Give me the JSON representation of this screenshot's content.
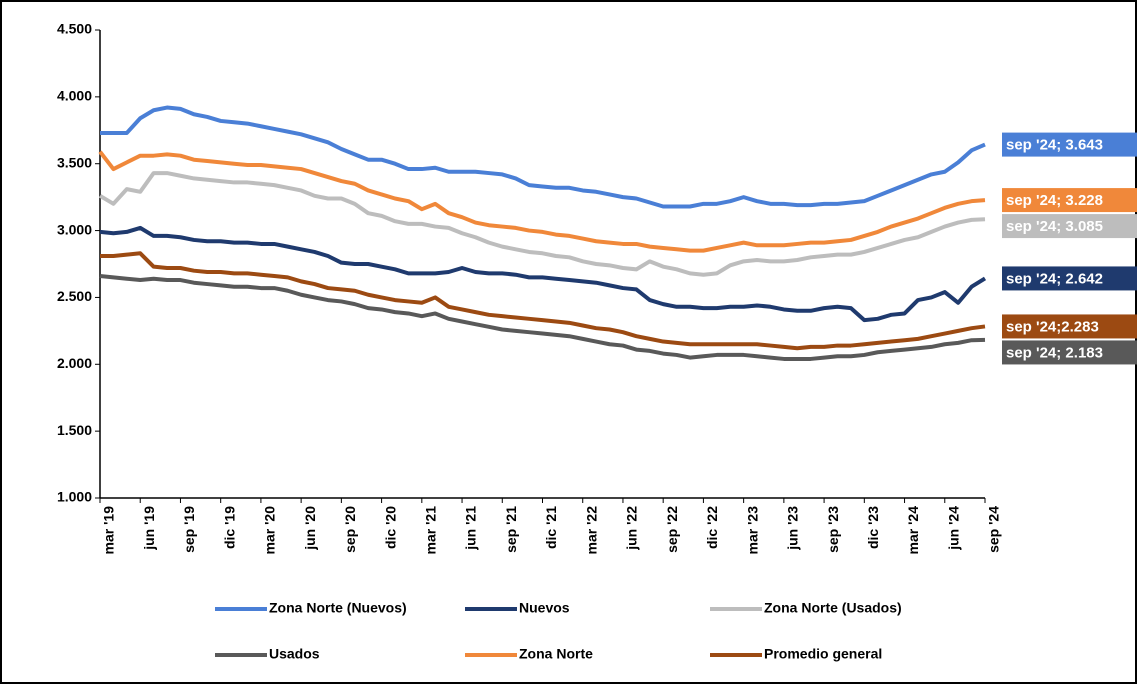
{
  "chart_data": {
    "type": "line",
    "categories": [
      "mar '19",
      null,
      null,
      "jun '19",
      null,
      null,
      "sep '19",
      null,
      null,
      "dic '19",
      null,
      null,
      "mar '20",
      null,
      null,
      "jun '20",
      null,
      null,
      "sep '20",
      null,
      null,
      "dic '20",
      null,
      null,
      "mar '21",
      null,
      null,
      "jun '21",
      null,
      null,
      "sep '21",
      null,
      null,
      "dic '21",
      null,
      null,
      "mar '22",
      null,
      null,
      "jun '22",
      null,
      null,
      "sep '22",
      null,
      null,
      "dic '22",
      null,
      null,
      "mar '23",
      null,
      null,
      "jun '23",
      null,
      null,
      "sep '23",
      null,
      null,
      "dic '23",
      null,
      null,
      "mar '24",
      null,
      null,
      "jun '24",
      null,
      null,
      "sep '24"
    ],
    "ylim": [
      1000,
      4500
    ],
    "yticks": [
      {
        "value": 1000,
        "label": "1.000"
      },
      {
        "value": 1500,
        "label": "1.500"
      },
      {
        "value": 2000,
        "label": "2.000"
      },
      {
        "value": 2500,
        "label": "2.500"
      },
      {
        "value": 3000,
        "label": "3.000"
      },
      {
        "value": 3500,
        "label": "3.500"
      },
      {
        "value": 4000,
        "label": "4.000"
      },
      {
        "value": 4500,
        "label": "4.500"
      }
    ],
    "grid": false,
    "legend": "bottom",
    "series": [
      {
        "name": "Zona Norte (Nuevos)",
        "color": "#4a7fd6",
        "values": [
          3730,
          3730,
          3730,
          3840,
          3900,
          3920,
          3910,
          3870,
          3850,
          3820,
          3810,
          3800,
          3780,
          3760,
          3740,
          3720,
          3690,
          3660,
          3610,
          3570,
          3530,
          3530,
          3500,
          3460,
          3460,
          3470,
          3440,
          3440,
          3440,
          3430,
          3420,
          3390,
          3340,
          3330,
          3320,
          3320,
          3300,
          3290,
          3270,
          3250,
          3240,
          3210,
          3180,
          3180,
          3180,
          3200,
          3200,
          3220,
          3250,
          3220,
          3200,
          3200,
          3190,
          3190,
          3200,
          3200,
          3210,
          3220,
          3260,
          3300,
          3340,
          3380,
          3420,
          3440,
          3510,
          3600,
          3643
        ],
        "value_labels": [
          null,
          null,
          null,
          null,
          null,
          null,
          null,
          null,
          null,
          null,
          null,
          null,
          null,
          null,
          null,
          null,
          null,
          null,
          null,
          null,
          null,
          null,
          null,
          null,
          null,
          null,
          null,
          null,
          null,
          null,
          null,
          null,
          null,
          null,
          null,
          null,
          null,
          null,
          null,
          null,
          null,
          null,
          null,
          null,
          null,
          null,
          null,
          null,
          null,
          null,
          null,
          null,
          null,
          null,
          null,
          null,
          null,
          null,
          null,
          null,
          null,
          null,
          null,
          null,
          null,
          null,
          "sep '24; 3.643"
        ]
      },
      {
        "name": "Nuevos",
        "color": "#1f3a6e",
        "values": [
          2990,
          2980,
          2990,
          3020,
          2960,
          2960,
          2950,
          2930,
          2920,
          2920,
          2910,
          2910,
          2900,
          2900,
          2880,
          2860,
          2840,
          2810,
          2760,
          2750,
          2750,
          2730,
          2710,
          2680,
          2680,
          2680,
          2690,
          2720,
          2690,
          2680,
          2680,
          2670,
          2650,
          2650,
          2640,
          2630,
          2620,
          2610,
          2590,
          2570,
          2560,
          2480,
          2450,
          2430,
          2430,
          2420,
          2420,
          2430,
          2430,
          2440,
          2430,
          2410,
          2400,
          2400,
          2420,
          2430,
          2420,
          2330,
          2340,
          2370,
          2380,
          2480,
          2500,
          2540,
          2460,
          2580,
          2642
        ],
        "value_labels": [
          null,
          null,
          null,
          null,
          null,
          null,
          null,
          null,
          null,
          null,
          null,
          null,
          null,
          null,
          null,
          null,
          null,
          null,
          null,
          null,
          null,
          null,
          null,
          null,
          null,
          null,
          null,
          null,
          null,
          null,
          null,
          null,
          null,
          null,
          null,
          null,
          null,
          null,
          null,
          null,
          null,
          null,
          null,
          null,
          null,
          null,
          null,
          null,
          null,
          null,
          null,
          null,
          null,
          null,
          null,
          null,
          null,
          null,
          null,
          null,
          null,
          null,
          null,
          null,
          null,
          null,
          "sep '24; 2.642"
        ]
      },
      {
        "name": "Zona Norte (Usados)",
        "color": "#bdbdbd",
        "values": [
          3260,
          3200,
          3310,
          3290,
          3430,
          3430,
          3410,
          3390,
          3380,
          3370,
          3360,
          3360,
          3350,
          3340,
          3320,
          3300,
          3260,
          3240,
          3240,
          3200,
          3130,
          3110,
          3070,
          3050,
          3050,
          3030,
          3020,
          2980,
          2950,
          2910,
          2880,
          2860,
          2840,
          2830,
          2810,
          2800,
          2770,
          2750,
          2740,
          2720,
          2710,
          2770,
          2730,
          2710,
          2680,
          2670,
          2680,
          2740,
          2770,
          2780,
          2770,
          2770,
          2780,
          2800,
          2810,
          2820,
          2820,
          2840,
          2870,
          2900,
          2930,
          2950,
          2990,
          3030,
          3060,
          3080,
          3085
        ],
        "value_labels": [
          null,
          null,
          null,
          null,
          null,
          null,
          null,
          null,
          null,
          null,
          null,
          null,
          null,
          null,
          null,
          null,
          null,
          null,
          null,
          null,
          null,
          null,
          null,
          null,
          null,
          null,
          null,
          null,
          null,
          null,
          null,
          null,
          null,
          null,
          null,
          null,
          null,
          null,
          null,
          null,
          null,
          null,
          null,
          null,
          null,
          null,
          null,
          null,
          null,
          null,
          null,
          null,
          null,
          null,
          null,
          null,
          null,
          null,
          null,
          null,
          null,
          null,
          null,
          null,
          null,
          null,
          "sep '24; 3.085"
        ]
      },
      {
        "name": "Usados",
        "color": "#595959",
        "values": [
          2660,
          2650,
          2640,
          2630,
          2640,
          2630,
          2630,
          2610,
          2600,
          2590,
          2580,
          2580,
          2570,
          2570,
          2550,
          2520,
          2500,
          2480,
          2470,
          2450,
          2420,
          2410,
          2390,
          2380,
          2360,
          2380,
          2340,
          2320,
          2300,
          2280,
          2260,
          2250,
          2240,
          2230,
          2220,
          2210,
          2190,
          2170,
          2150,
          2140,
          2110,
          2100,
          2080,
          2070,
          2050,
          2060,
          2070,
          2070,
          2070,
          2060,
          2050,
          2040,
          2040,
          2040,
          2050,
          2060,
          2060,
          2070,
          2090,
          2100,
          2110,
          2120,
          2130,
          2150,
          2160,
          2180,
          2183
        ],
        "value_labels": [
          null,
          null,
          null,
          null,
          null,
          null,
          null,
          null,
          null,
          null,
          null,
          null,
          null,
          null,
          null,
          null,
          null,
          null,
          null,
          null,
          null,
          null,
          null,
          null,
          null,
          null,
          null,
          null,
          null,
          null,
          null,
          null,
          null,
          null,
          null,
          null,
          null,
          null,
          null,
          null,
          null,
          null,
          null,
          null,
          null,
          null,
          null,
          null,
          null,
          null,
          null,
          null,
          null,
          null,
          null,
          null,
          null,
          null,
          null,
          null,
          null,
          null,
          null,
          null,
          null,
          null,
          "sep '24; 2.183"
        ]
      },
      {
        "name": "Zona Norte",
        "color": "#f0883a",
        "values": [
          3590,
          3460,
          3510,
          3560,
          3560,
          3570,
          3560,
          3530,
          3520,
          3510,
          3500,
          3490,
          3490,
          3480,
          3470,
          3460,
          3430,
          3400,
          3370,
          3350,
          3300,
          3270,
          3240,
          3220,
          3160,
          3200,
          3130,
          3100,
          3060,
          3040,
          3030,
          3020,
          3000,
          2990,
          2970,
          2960,
          2940,
          2920,
          2910,
          2900,
          2900,
          2880,
          2870,
          2860,
          2850,
          2850,
          2870,
          2890,
          2910,
          2890,
          2890,
          2890,
          2900,
          2910,
          2910,
          2920,
          2930,
          2960,
          2990,
          3030,
          3060,
          3090,
          3130,
          3170,
          3200,
          3220,
          3228
        ],
        "value_labels": [
          null,
          null,
          null,
          null,
          null,
          null,
          null,
          null,
          null,
          null,
          null,
          null,
          null,
          null,
          null,
          null,
          null,
          null,
          null,
          null,
          null,
          null,
          null,
          null,
          null,
          null,
          null,
          null,
          null,
          null,
          null,
          null,
          null,
          null,
          null,
          null,
          null,
          null,
          null,
          null,
          null,
          null,
          null,
          null,
          null,
          null,
          null,
          null,
          null,
          null,
          null,
          null,
          null,
          null,
          null,
          null,
          null,
          null,
          null,
          null,
          null,
          null,
          null,
          null,
          null,
          null,
          "sep '24; 3.228"
        ]
      },
      {
        "name": "Promedio general",
        "color": "#9c4a12",
        "values": [
          2810,
          2810,
          2820,
          2830,
          2730,
          2720,
          2720,
          2700,
          2690,
          2690,
          2680,
          2680,
          2670,
          2660,
          2650,
          2620,
          2600,
          2570,
          2560,
          2550,
          2520,
          2500,
          2480,
          2470,
          2460,
          2500,
          2430,
          2410,
          2390,
          2370,
          2360,
          2350,
          2340,
          2330,
          2320,
          2310,
          2290,
          2270,
          2260,
          2240,
          2210,
          2190,
          2170,
          2160,
          2150,
          2150,
          2150,
          2150,
          2150,
          2150,
          2140,
          2130,
          2120,
          2130,
          2130,
          2140,
          2140,
          2150,
          2160,
          2170,
          2180,
          2190,
          2210,
          2230,
          2250,
          2270,
          2283
        ],
        "value_labels": [
          null,
          null,
          null,
          null,
          null,
          null,
          null,
          null,
          null,
          null,
          null,
          null,
          null,
          null,
          null,
          null,
          null,
          null,
          null,
          null,
          null,
          null,
          null,
          null,
          null,
          null,
          null,
          null,
          null,
          null,
          null,
          null,
          null,
          null,
          null,
          null,
          null,
          null,
          null,
          null,
          null,
          null,
          null,
          null,
          null,
          null,
          null,
          null,
          null,
          null,
          null,
          null,
          null,
          null,
          null,
          null,
          null,
          null,
          null,
          null,
          null,
          null,
          null,
          null,
          null,
          null,
          "sep '24;2.283"
        ]
      }
    ]
  }
}
